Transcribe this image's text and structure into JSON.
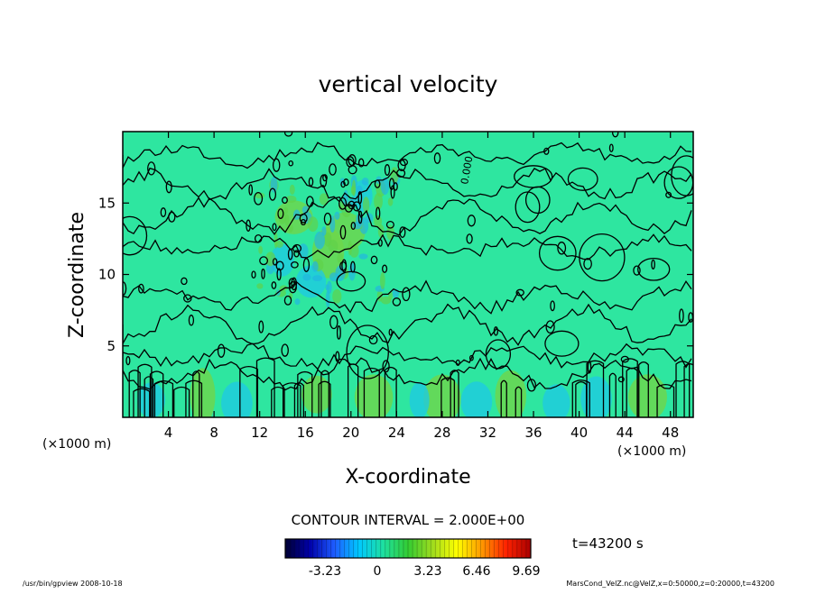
{
  "chart_data": {
    "type": "heatmap",
    "title": "vertical velocity",
    "xlabel": "X-coordinate",
    "ylabel": "Z-coordinate",
    "x_unit": "(×1000 m)",
    "y_unit": "(×1000 m)",
    "xlim": [
      0,
      50
    ],
    "ylim": [
      0,
      20
    ],
    "x_ticks": [
      4,
      8,
      12,
      16,
      20,
      24,
      28,
      32,
      36,
      40,
      44,
      48
    ],
    "y_ticks": [
      5,
      10,
      15
    ],
    "contour_interval_text": "CONTOUR INTERVAL = 2.000E+00",
    "contour_label": "0.000",
    "time_text": "t=43200 s",
    "colorbar": {
      "ticks": [
        "-3.23",
        "0",
        "3.23",
        "6.46",
        "9.69"
      ],
      "colors": [
        "#000033",
        "#0000aa",
        "#1e5cff",
        "#00c8ff",
        "#1ee0a0",
        "#33cc33",
        "#a0dc1e",
        "#ffff00",
        "#ff9900",
        "#ff2200",
        "#aa0000"
      ]
    },
    "field_base_color": "#2ee6a0",
    "footer_left": "/usr/bin/gpview   2008-10-18",
    "footer_right": "MarsCond_VelZ.nc@VelZ,x=0:50000,z=0:20000,t=43200"
  }
}
